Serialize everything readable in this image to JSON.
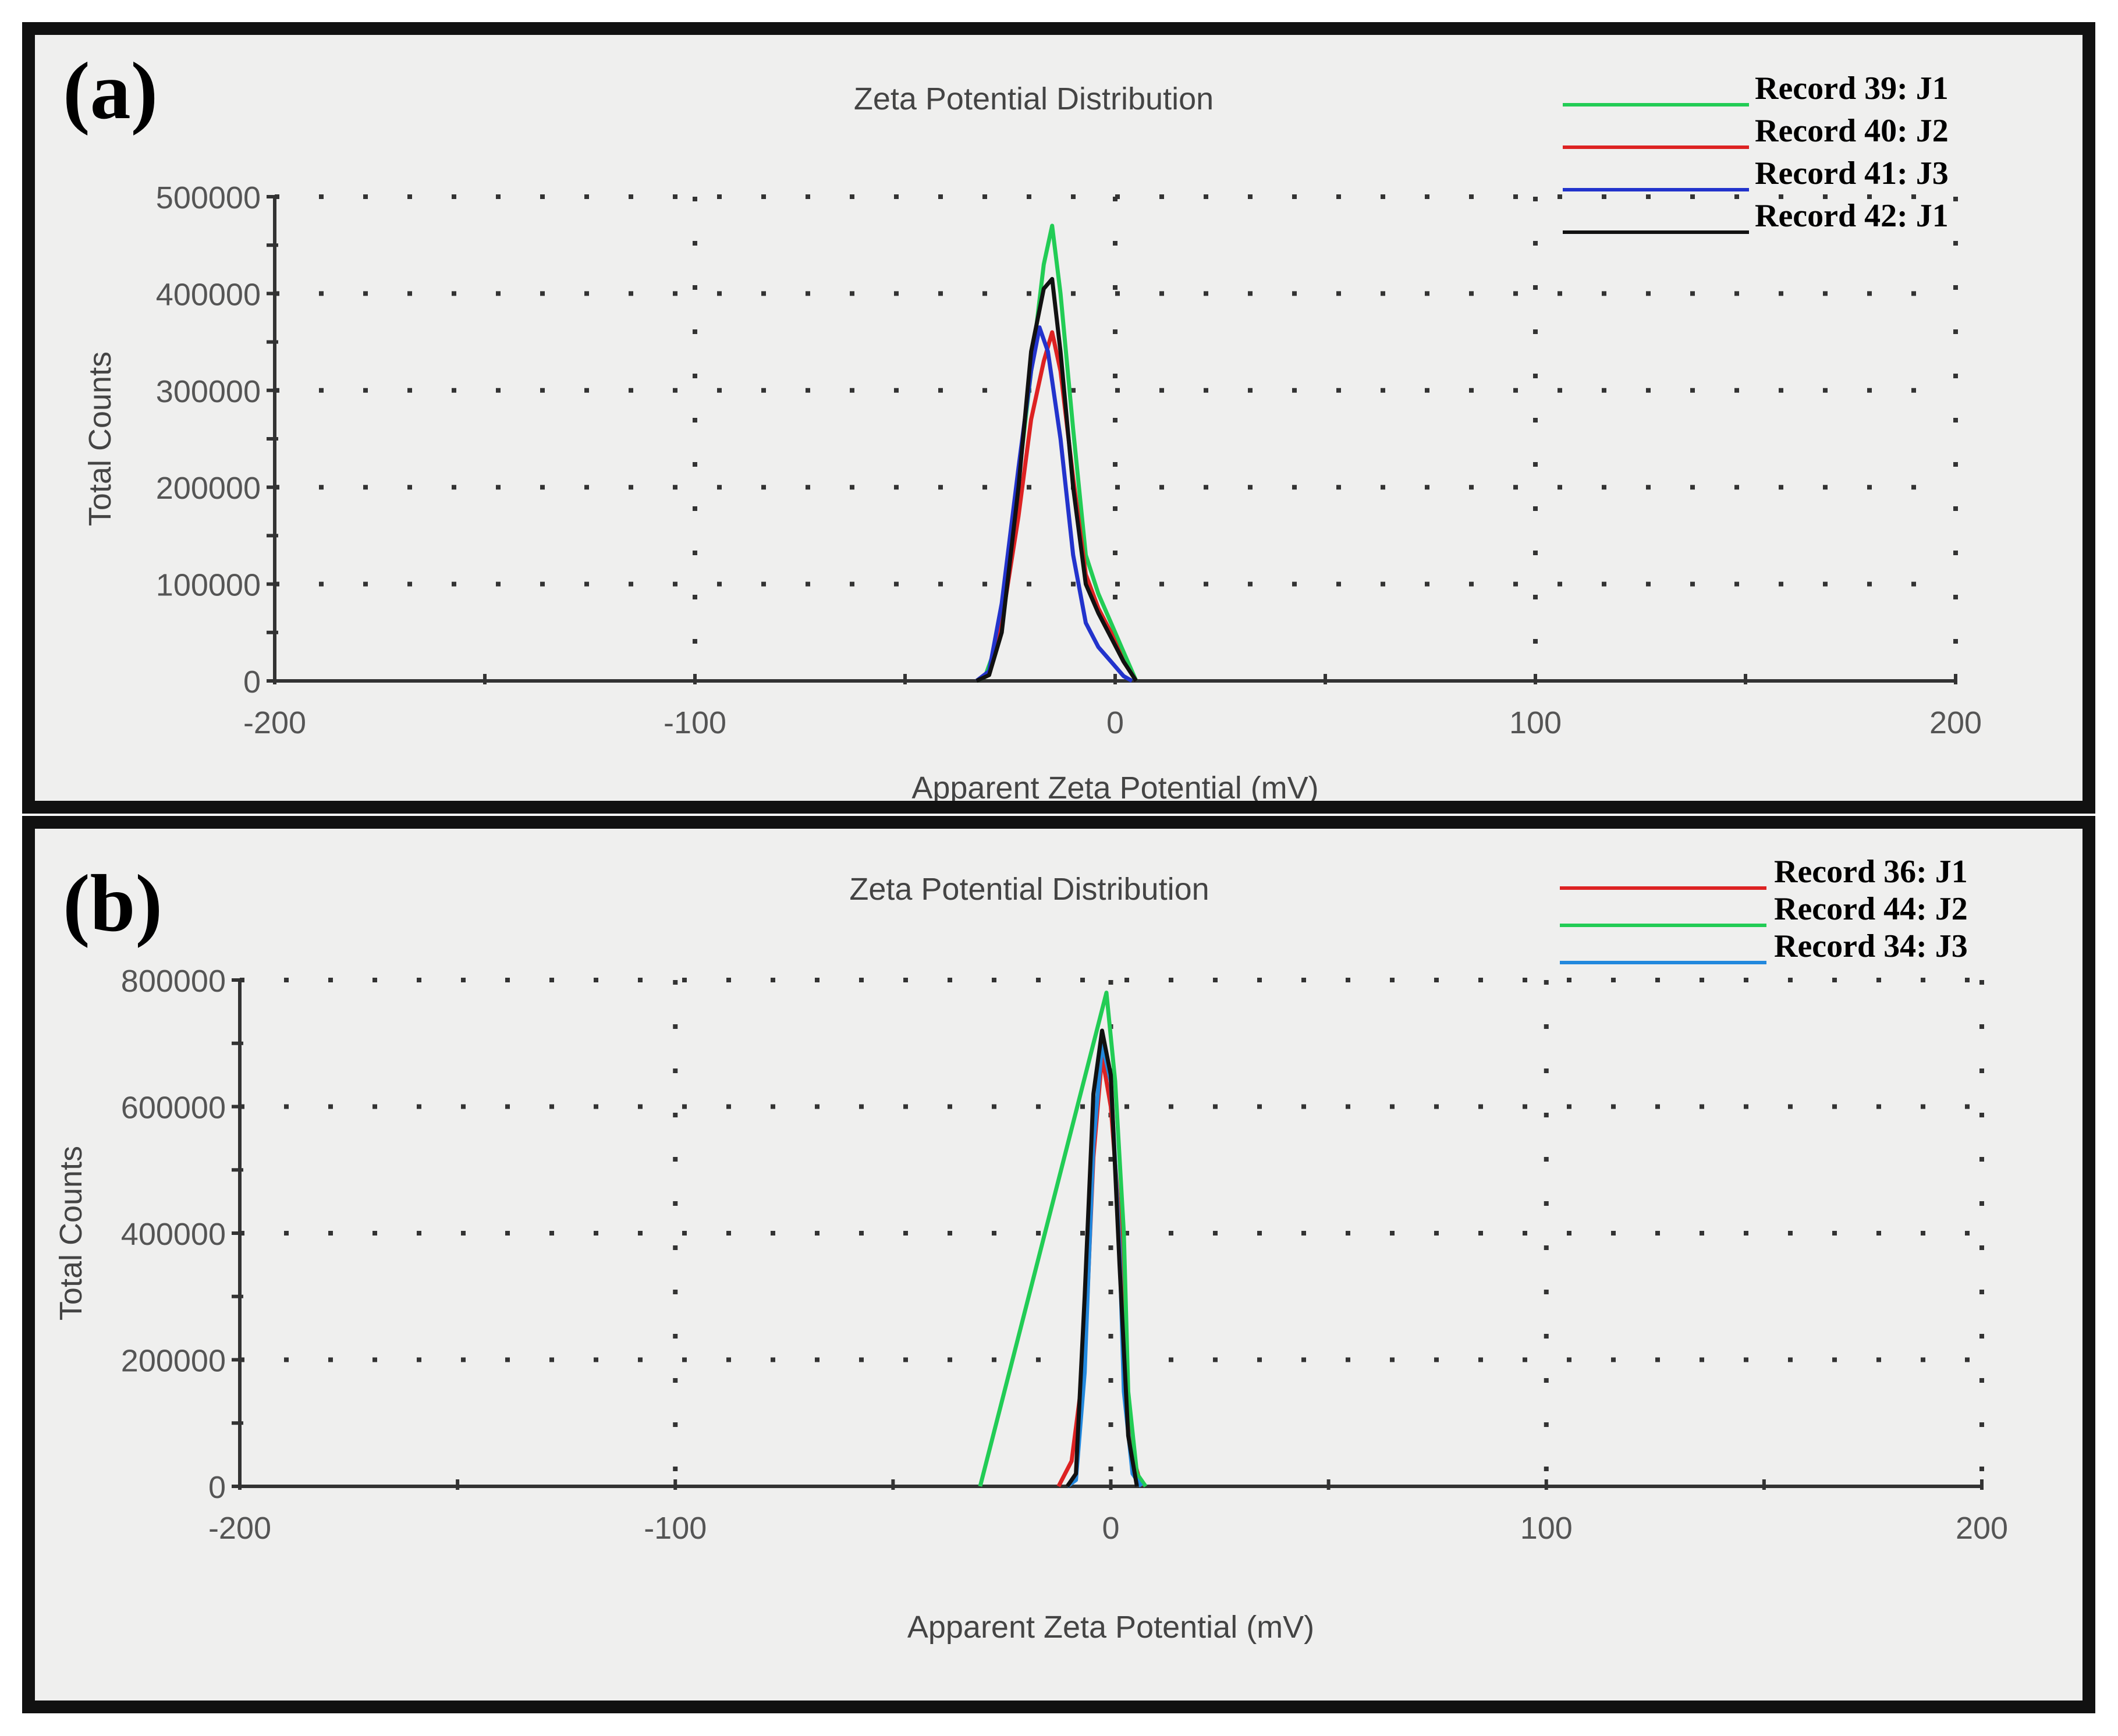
{
  "panels": [
    {
      "label": "(a)",
      "chart_data": {
        "type": "line",
        "title": "Zeta Potential Distribution",
        "xlabel": "Apparent Zeta Potential (mV)",
        "ylabel": "Total Counts",
        "xlim": [
          -200,
          200
        ],
        "ylim": [
          0,
          500000
        ],
        "xticks": [
          -200,
          -100,
          0,
          100,
          200
        ],
        "yticks": [
          0,
          100000,
          200000,
          300000,
          400000,
          500000
        ],
        "grid": true,
        "legend_position": "top-right",
        "series": [
          {
            "name": "Record 39: J1",
            "color": "#22cc55",
            "points": [
              [
                -33,
                0
              ],
              [
                -31,
                4000
              ],
              [
                -28,
                40000
              ],
              [
                -24,
                170000
              ],
              [
                -20,
                320000
              ],
              [
                -17,
                430000
              ],
              [
                -15,
                470000
              ],
              [
                -13,
                400000
              ],
              [
                -10,
                260000
              ],
              [
                -7,
                130000
              ],
              [
                -4,
                90000
              ],
              [
                -1,
                60000
              ],
              [
                2,
                30000
              ],
              [
                5,
                0
              ]
            ]
          },
          {
            "name": "Record 40: J2",
            "color": "#dd2222",
            "points": [
              [
                -33,
                0
              ],
              [
                -30,
                8000
              ],
              [
                -27,
                60000
              ],
              [
                -23,
                170000
              ],
              [
                -20,
                270000
              ],
              [
                -17,
                330000
              ],
              [
                -15,
                360000
              ],
              [
                -13,
                320000
              ],
              [
                -10,
                210000
              ],
              [
                -7,
                110000
              ],
              [
                -4,
                75000
              ],
              [
                -1,
                50000
              ],
              [
                2,
                20000
              ],
              [
                5,
                0
              ]
            ]
          },
          {
            "name": "Record 41: J3",
            "color": "#2233cc",
            "points": [
              [
                -33,
                0
              ],
              [
                -30,
                10000
              ],
              [
                -27,
                80000
              ],
              [
                -23,
                220000
              ],
              [
                -20,
                320000
              ],
              [
                -18,
                365000
              ],
              [
                -16,
                340000
              ],
              [
                -13,
                250000
              ],
              [
                -10,
                130000
              ],
              [
                -7,
                60000
              ],
              [
                -4,
                35000
              ],
              [
                -1,
                20000
              ],
              [
                2,
                5000
              ],
              [
                4,
                0
              ]
            ]
          },
          {
            "name": "Record 42: J1",
            "color": "#111111",
            "points": [
              [
                -33,
                0
              ],
              [
                -30,
                6000
              ],
              [
                -27,
                50000
              ],
              [
                -23,
                200000
              ],
              [
                -20,
                340000
              ],
              [
                -17,
                405000
              ],
              [
                -15,
                415000
              ],
              [
                -13,
                340000
              ],
              [
                -10,
                200000
              ],
              [
                -7,
                100000
              ],
              [
                -4,
                70000
              ],
              [
                -1,
                45000
              ],
              [
                2,
                20000
              ],
              [
                5,
                0
              ]
            ]
          }
        ]
      }
    },
    {
      "label": "(b)",
      "chart_data": {
        "type": "line",
        "title": "Zeta Potential Distribution",
        "xlabel": "Apparent Zeta Potential (mV)",
        "ylabel": "Total Counts",
        "xlim": [
          -200,
          200
        ],
        "ylim": [
          0,
          800000
        ],
        "xticks": [
          -200,
          -100,
          0,
          100,
          200
        ],
        "yticks": [
          0,
          200000,
          400000,
          600000,
          800000
        ],
        "grid": true,
        "legend_position": "top-right",
        "series": [
          {
            "name": "Record 36: J1",
            "color": "#dd2222",
            "points": [
              [
                -12,
                0
              ],
              [
                -9,
                40000
              ],
              [
                -6,
                200000
              ],
              [
                -4,
                520000
              ],
              [
                -2,
                680000
              ],
              [
                0,
                600000
              ],
              [
                2,
                420000
              ],
              [
                3,
                200000
              ],
              [
                5,
                50000
              ],
              [
                7,
                0
              ]
            ]
          },
          {
            "name": "Record 44: J2",
            "color": "#22cc55",
            "points": [
              [
                -30,
                0
              ],
              [
                -1,
                780000
              ],
              [
                1,
                640000
              ],
              [
                3,
                400000
              ],
              [
                4,
                150000
              ],
              [
                6,
                20000
              ],
              [
                8,
                0
              ]
            ]
          },
          {
            "name": "Record 34: J3",
            "color": "#2288dd",
            "points": [
              [
                -10,
                0
              ],
              [
                -8,
                10000
              ],
              [
                -6,
                180000
              ],
              [
                -4,
                540000
              ],
              [
                -2,
                700000
              ],
              [
                0,
                640000
              ],
              [
                2,
                380000
              ],
              [
                3,
                150000
              ],
              [
                5,
                20000
              ],
              [
                7,
                0
              ]
            ]
          },
          {
            "color": "#111111",
            "points": [
              [
                -10,
                0
              ],
              [
                -8,
                20000
              ],
              [
                -6,
                300000
              ],
              [
                -4,
                620000
              ],
              [
                -2,
                720000
              ],
              [
                0,
                650000
              ],
              [
                2,
                350000
              ],
              [
                4,
                80000
              ],
              [
                6,
                0
              ]
            ]
          }
        ]
      }
    }
  ]
}
